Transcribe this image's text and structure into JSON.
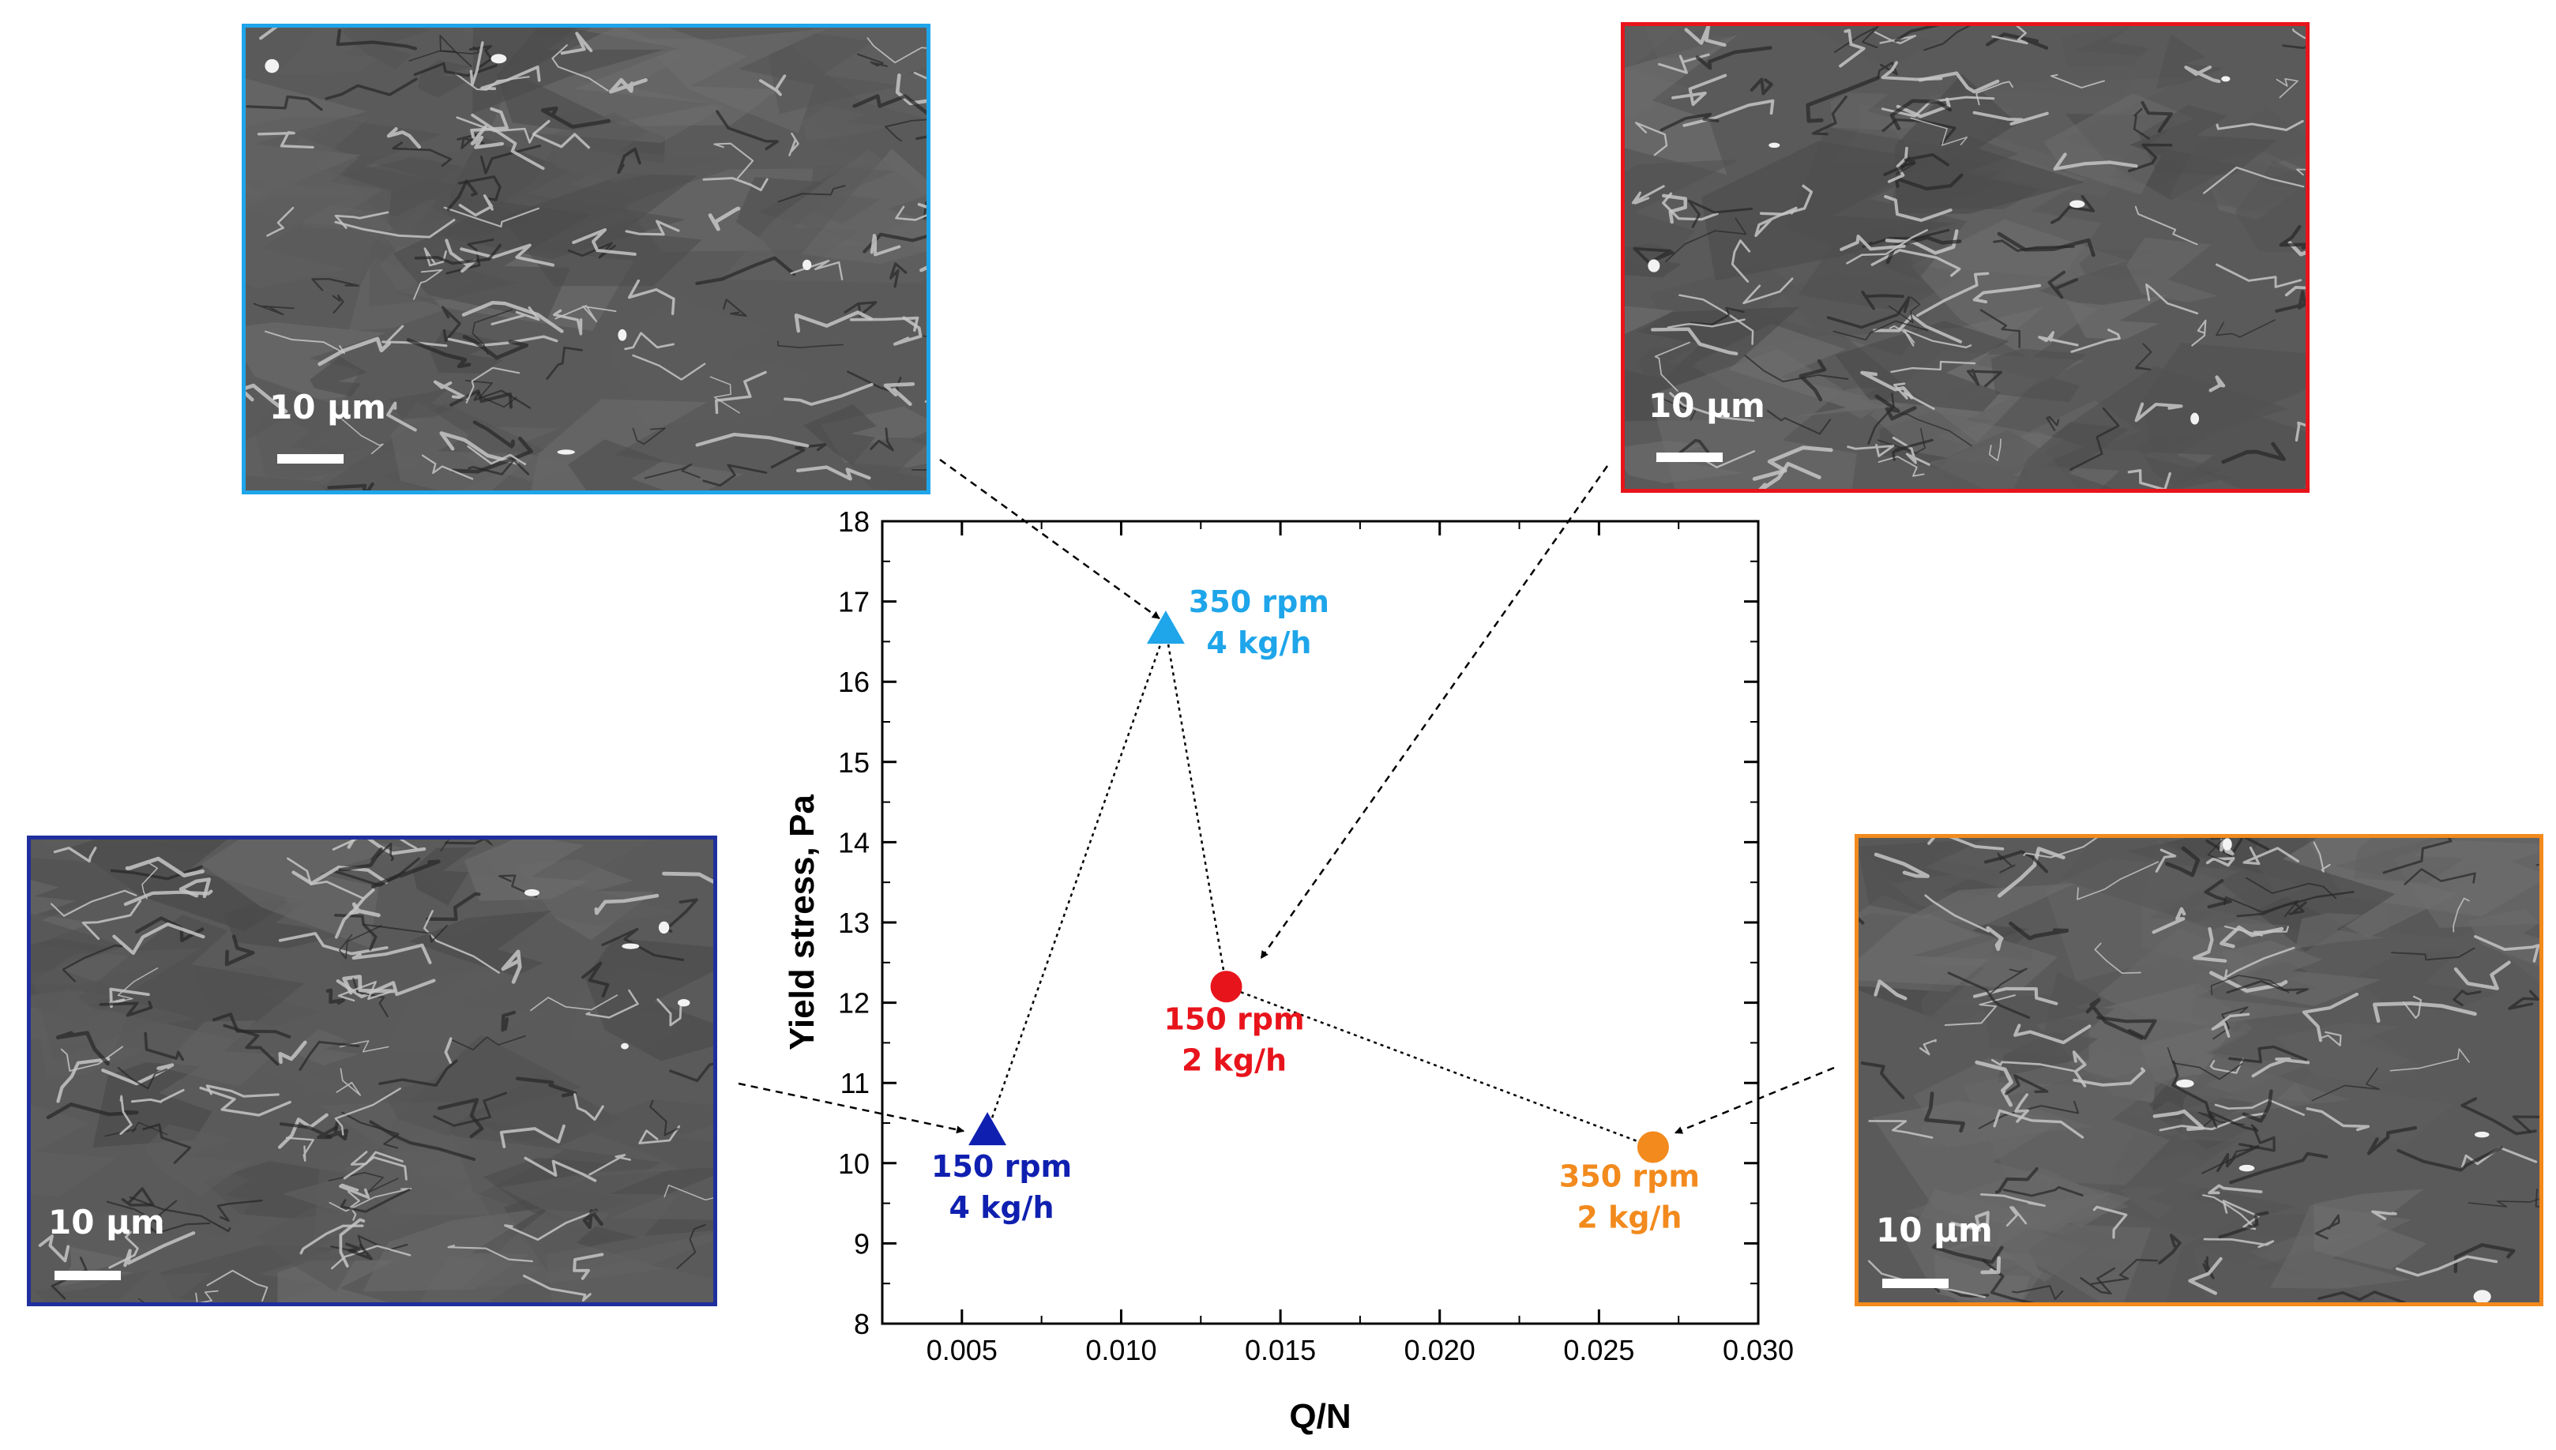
{
  "chart_data": {
    "type": "scatter",
    "title": "",
    "xlabel": "Q/N",
    "ylabel": "Yield stress, Pa",
    "xlim": [
      0.0025,
      0.03
    ],
    "ylim": [
      8,
      18
    ],
    "x_ticks": [
      "0.005",
      "0.010",
      "0.015",
      "0.020",
      "0.025",
      "0.030"
    ],
    "y_ticks": [
      "8",
      "9",
      "10",
      "11",
      "12",
      "13",
      "14",
      "15",
      "16",
      "17",
      "18"
    ],
    "grid": false,
    "connecting_line": "dotted",
    "points": [
      {
        "x": 0.0058,
        "y": 10.4,
        "label_line1": "150 rpm",
        "label_line2": "4 kg/h",
        "marker": "triangle",
        "color": "#0f20b0"
      },
      {
        "x": 0.0114,
        "y": 16.65,
        "label_line1": "350 rpm",
        "label_line2": "4 kg/h",
        "marker": "triangle",
        "color": "#1ea5ea"
      },
      {
        "x": 0.0133,
        "y": 12.2,
        "label_line1": "150 rpm",
        "label_line2": "2 kg/h",
        "marker": "circle",
        "color": "#e8141c"
      },
      {
        "x": 0.0267,
        "y": 10.2,
        "label_line1": "350 rpm",
        "label_line2": "2 kg/h",
        "marker": "circle",
        "color": "#f28a1d"
      }
    ]
  },
  "micrographs": [
    {
      "condition": "350 rpm 4 kg/h",
      "scale_label": "10 µm",
      "frame_color": "#1ea5ea"
    },
    {
      "condition": "150 rpm 2 kg/h",
      "scale_label": "10 µm",
      "frame_color": "#e8141c"
    },
    {
      "condition": "150 rpm 4 kg/h",
      "scale_label": "10 µm",
      "frame_color": "#1f2f9e"
    },
    {
      "condition": "350 rpm 2 kg/h",
      "scale_label": "10 µm",
      "frame_color": "#f28a1d"
    }
  ]
}
